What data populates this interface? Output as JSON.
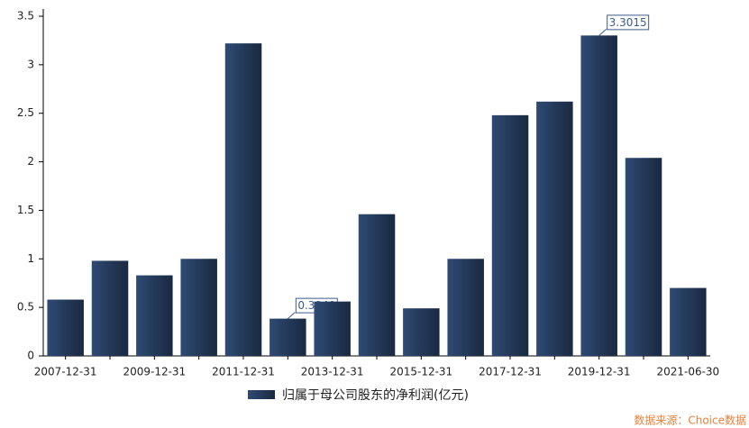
{
  "chart_data": {
    "type": "bar",
    "categories": [
      "2007-12-31",
      null,
      "2009-12-31",
      null,
      "2011-12-31",
      null,
      "2013-12-31",
      null,
      "2015-12-31",
      null,
      "2017-12-31",
      null,
      "2019-12-31",
      null,
      "2021-06-30"
    ],
    "series": [
      {
        "name": "归属于母公司股东的净利润(亿元)",
        "color": "#2e4a74",
        "values": [
          0.58,
          0.98,
          0.83,
          1.0,
          3.22,
          0.384,
          0.56,
          1.46,
          0.49,
          1.0,
          2.48,
          2.62,
          3.3015,
          2.04,
          0.7
        ],
        "value_labels": [
          null,
          null,
          null,
          null,
          null,
          "0.3840",
          null,
          null,
          null,
          null,
          null,
          null,
          "3.3015",
          null,
          null
        ]
      }
    ],
    "ylim": [
      0,
      3.5
    ],
    "yticks": [
      0,
      0.5,
      1,
      1.5,
      2,
      2.5,
      3,
      3.5
    ],
    "grid": false,
    "source": "数据来源：Choice数据"
  }
}
